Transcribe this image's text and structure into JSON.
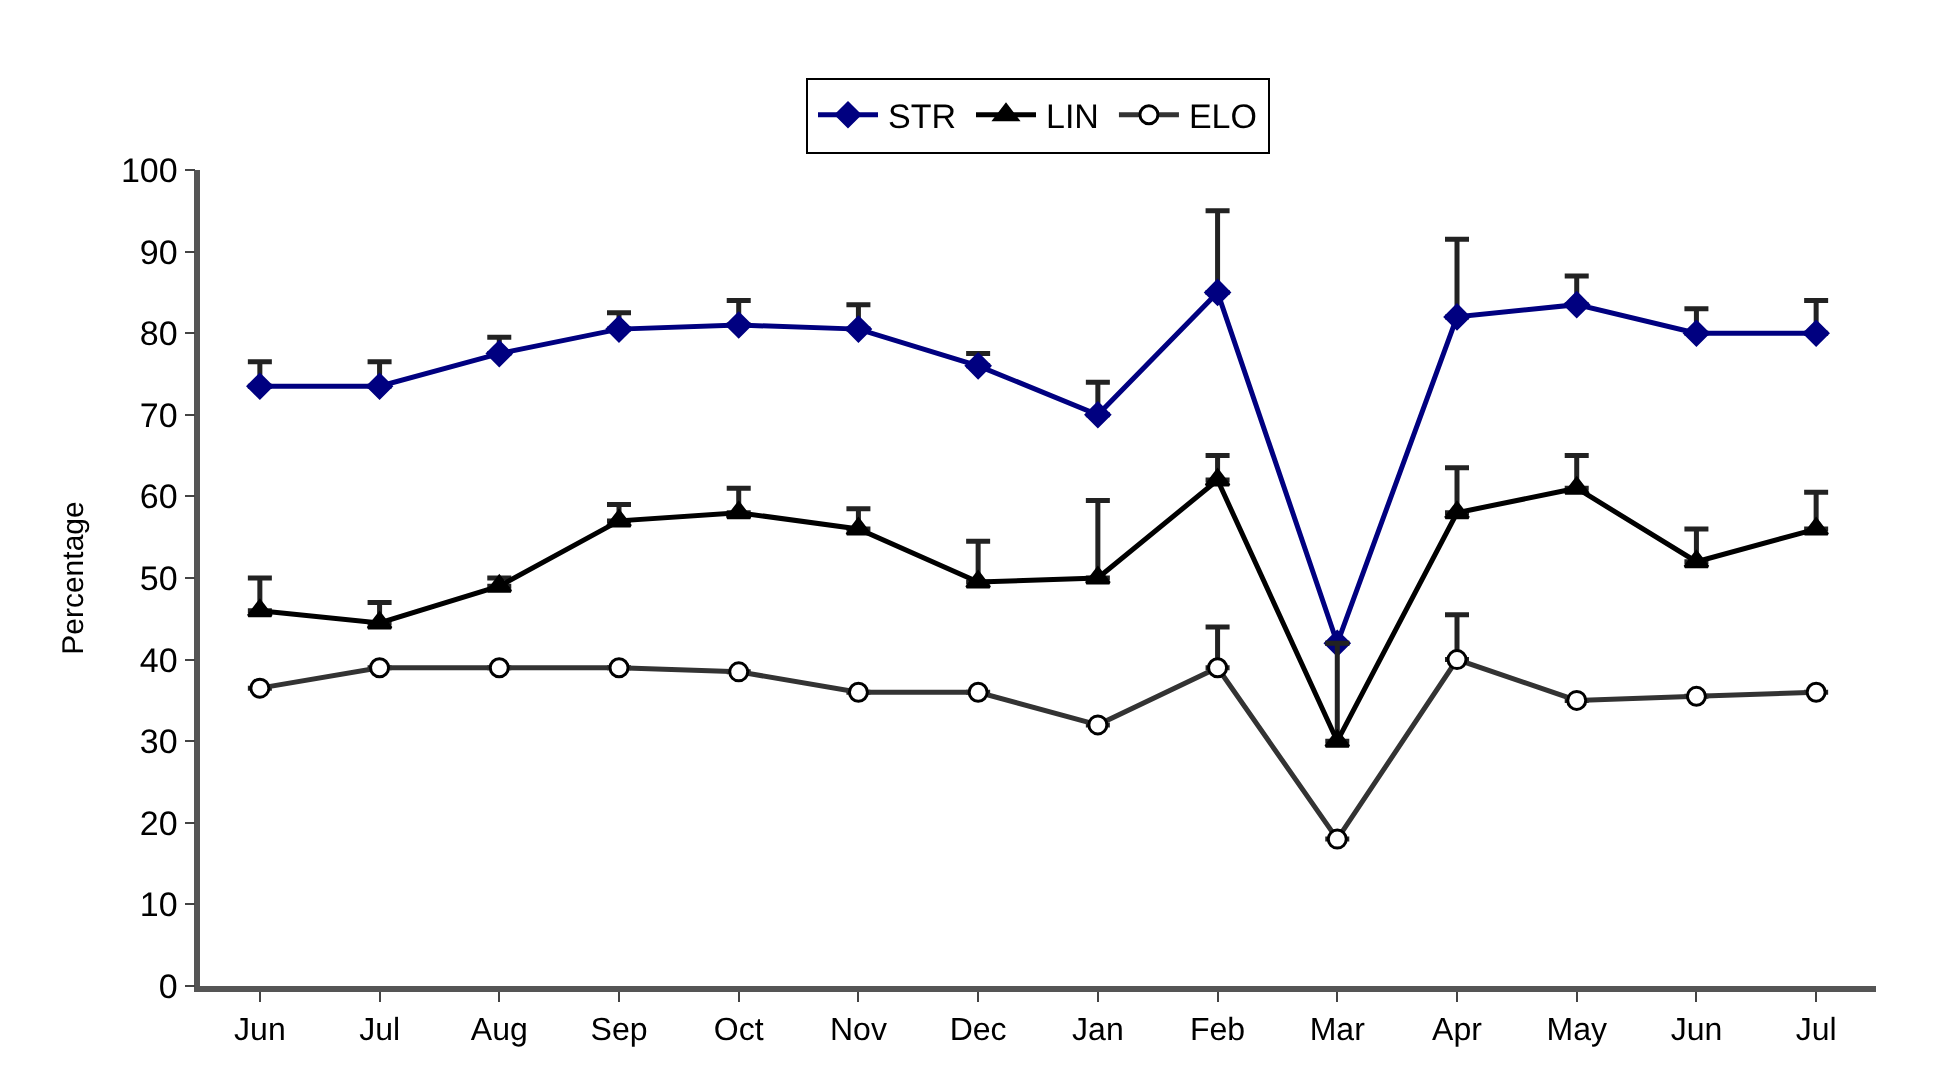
{
  "chart_data": {
    "type": "line",
    "ylabel": "Percentage",
    "categories": [
      "Jun",
      "Jul",
      "Aug",
      "Sep",
      "Oct",
      "Nov",
      "Dec",
      "Jan",
      "Feb",
      "Mar",
      "Apr",
      "May",
      "Jun",
      "Jul"
    ],
    "series": [
      {
        "name": "STR",
        "color": "#000080",
        "marker": "diamond",
        "values": [
          73.5,
          73.5,
          77.5,
          80.5,
          81,
          80.5,
          76,
          70,
          85,
          42,
          82,
          83.5,
          80,
          80
        ],
        "errors": [
          [
            73.5,
            76.5
          ],
          [
            73.5,
            76.5
          ],
          [
            77.5,
            79.5
          ],
          [
            80.5,
            82.5
          ],
          [
            81,
            84
          ],
          [
            80.5,
            83.5
          ],
          [
            76,
            77.5
          ],
          [
            70,
            74
          ],
          [
            85,
            95
          ],
          null,
          [
            82,
            91.5
          ],
          [
            83.5,
            87
          ],
          [
            80,
            83
          ],
          [
            80,
            84
          ]
        ]
      },
      {
        "name": "LIN",
        "color": "#000000",
        "marker": "triangle",
        "values": [
          46,
          44.5,
          49,
          57,
          58,
          56,
          49.5,
          50,
          62,
          30,
          58,
          61,
          52,
          56
        ],
        "errors": [
          [
            46,
            50
          ],
          [
            44.5,
            47
          ],
          [
            49,
            50
          ],
          [
            57,
            59
          ],
          [
            58,
            61
          ],
          [
            56,
            58.5
          ],
          [
            49.5,
            54.5
          ],
          [
            50,
            59.5
          ],
          [
            62,
            65
          ],
          [
            30,
            42
          ],
          [
            58,
            63.5
          ],
          [
            61,
            65
          ],
          [
            52,
            56
          ],
          [
            56,
            60.5
          ]
        ]
      },
      {
        "name": "ELO",
        "color": "#333333",
        "marker": "circle",
        "values": [
          36.5,
          39,
          39,
          39,
          38.5,
          36,
          36,
          32,
          39,
          18,
          40,
          35,
          35.5,
          36
        ],
        "errors": [
          null,
          null,
          null,
          null,
          null,
          null,
          null,
          null,
          [
            39,
            44
          ],
          null,
          [
            40,
            45.5
          ],
          null,
          null,
          null
        ]
      }
    ],
    "ylim": [
      0,
      100
    ],
    "yticks": [
      0,
      10,
      20,
      30,
      40,
      50,
      60,
      70,
      80,
      90,
      100
    ],
    "legend": "top",
    "line_style": "solid"
  }
}
